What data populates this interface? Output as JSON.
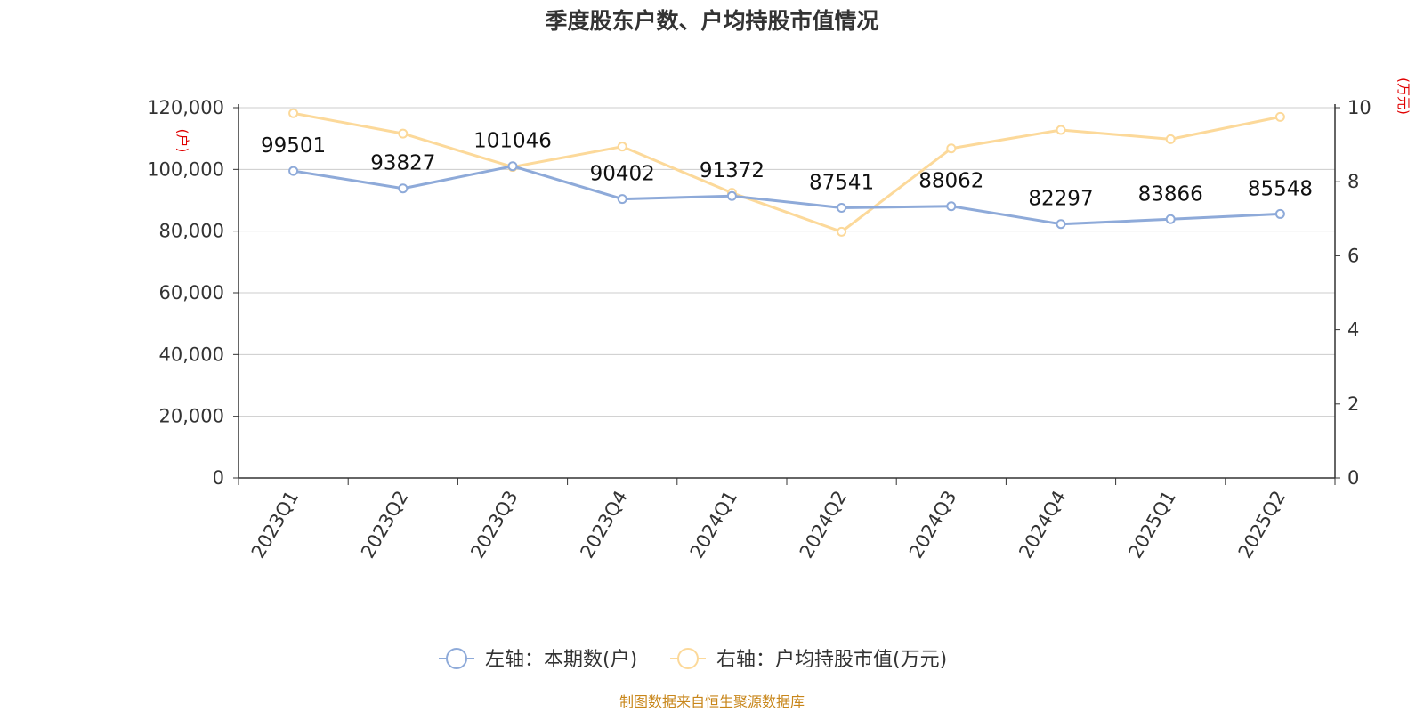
{
  "chart_data": {
    "type": "line",
    "title": "季度股东户数、户均持股市值情况",
    "categories": [
      "2023Q1",
      "2023Q2",
      "2023Q3",
      "2023Q4",
      "2024Q1",
      "2024Q2",
      "2024Q3",
      "2024Q4",
      "2025Q1",
      "2025Q2"
    ],
    "left_axis": {
      "unit": "(户)",
      "min": 0,
      "max": 120000,
      "ticks": [
        "0",
        "20,000",
        "40,000",
        "60,000",
        "80,000",
        "100,000",
        "120,000"
      ]
    },
    "right_axis": {
      "unit": "(万元)",
      "min": 0,
      "max": 10,
      "ticks": [
        "0",
        "2",
        "4",
        "6",
        "8",
        "10"
      ]
    },
    "series": [
      {
        "name": "左轴：本期数(户)",
        "axis": "left",
        "color": "#8eaad9",
        "values": [
          99501,
          93827,
          101046,
          90402,
          91372,
          87541,
          88062,
          82297,
          83866,
          85548
        ],
        "labels": [
          "99501",
          "93827",
          "101046",
          "90402",
          "91372",
          "87541",
          "88062",
          "82297",
          "83866",
          "85548"
        ]
      },
      {
        "name": "右轴：户均持股市值(万元)",
        "axis": "right",
        "color": "#fcd99a",
        "values": [
          9.85,
          9.3,
          8.4,
          8.95,
          7.7,
          6.65,
          8.9,
          9.4,
          9.15,
          9.75
        ]
      }
    ],
    "grid": true,
    "legend_position": "bottom-center"
  },
  "source": "制图数据来自恒生聚源数据库"
}
